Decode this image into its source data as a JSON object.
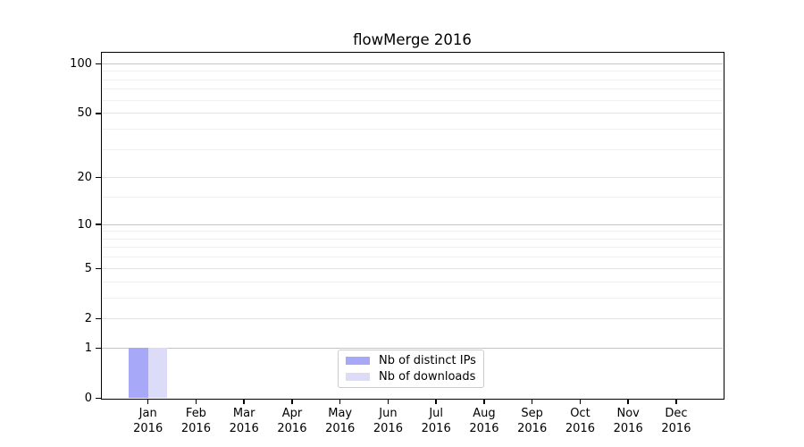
{
  "title": "flowMerge 2016",
  "chart_data": {
    "type": "bar",
    "title": "flowMerge 2016",
    "yscale": "log1p",
    "ylim": [
      0,
      116
    ],
    "grid": true,
    "legend_position": "lower center",
    "categories": [
      "Jan\n2016",
      "Feb\n2016",
      "Mar\n2016",
      "Apr\n2016",
      "May\n2016",
      "Jun\n2016",
      "Jul\n2016",
      "Aug\n2016",
      "Sep\n2016",
      "Oct\n2016",
      "Nov\n2016",
      "Dec\n2016"
    ],
    "y_ticks": [
      0,
      1,
      2,
      5,
      10,
      20,
      50,
      100
    ],
    "y_tick_labels": [
      "0",
      "1",
      "2",
      "5",
      "10",
      "20",
      "50",
      "100"
    ],
    "y_major_gridlines": [
      1,
      10,
      100
    ],
    "y_mid_gridlines": [
      2,
      5,
      20,
      50
    ],
    "y_minor_gridlines": [
      3,
      4,
      6,
      7,
      8,
      9,
      15,
      30,
      40,
      60,
      70,
      80,
      90
    ],
    "grid_colors": {
      "major": "#c4c4c4",
      "mid": "#e2e2e2",
      "minor": "#efefef"
    },
    "axis_color": "#000000",
    "series": [
      {
        "name": "Nb of distinct IPs",
        "color": "#a8a8f8",
        "values": [
          1,
          0,
          0,
          0,
          0,
          0,
          0,
          0,
          0,
          0,
          0,
          0
        ]
      },
      {
        "name": "Nb of downloads",
        "color": "#dcdcf9",
        "values": [
          1,
          0,
          0,
          0,
          0,
          0,
          0,
          0,
          0,
          0,
          0,
          0
        ]
      }
    ]
  }
}
